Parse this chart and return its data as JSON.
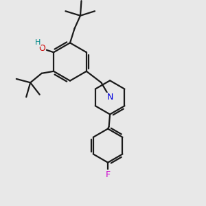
{
  "bg_color": "#e8e8e8",
  "bond_color": "#1a1a1a",
  "bond_width": 1.6,
  "atom_colors": {
    "O": "#cc0000",
    "H_label": "#008888",
    "N": "#0000dd",
    "F": "#cc00cc",
    "C": "#1a1a1a"
  },
  "font_size_atom": 8.5,
  "fig_bg": "#e8e8e8"
}
